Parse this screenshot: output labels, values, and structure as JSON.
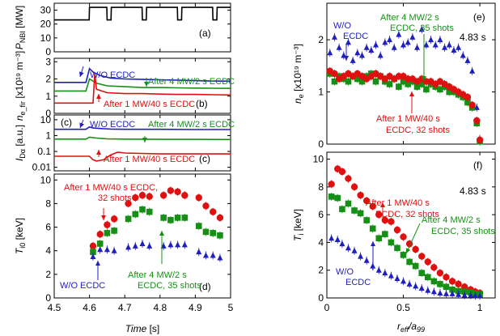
{
  "chart_data": [
    {
      "id": "a",
      "type": "line",
      "panel_label": "(a)",
      "ylabel": "P",
      "ylabel_sub": "NBI",
      "ylabel_unit": " [MW]",
      "xlim": [
        4.5,
        5.0
      ],
      "ylim": [
        0,
        35
      ],
      "yticks": [
        0,
        10,
        20,
        30
      ],
      "ytick_labels": [
        "0",
        "10",
        "20",
        "30"
      ],
      "series": [
        {
          "name": "NBI power",
          "color": "#000000",
          "x": [
            4.5,
            4.599,
            4.6,
            4.649,
            4.65,
            4.661,
            4.662,
            4.699,
            4.7,
            4.749,
            4.75,
            4.761,
            4.762,
            4.799,
            4.8,
            4.849,
            4.85,
            4.861,
            4.862,
            4.899,
            4.9,
            4.949,
            4.95,
            4.961,
            4.962,
            5.0
          ],
          "y": [
            23,
            23,
            32,
            32,
            23,
            23,
            32,
            32,
            32,
            32,
            23,
            23,
            32,
            32,
            32,
            32,
            23,
            23,
            32,
            32,
            32,
            32,
            23,
            23,
            32,
            32
          ]
        }
      ]
    },
    {
      "id": "b",
      "type": "line",
      "panel_label": "(b)",
      "ylabel": "n",
      "ylabel_sub": "e_fir",
      "ylabel_unit": " [x10¹⁹ m⁻³]",
      "xlim": [
        4.5,
        5.0
      ],
      "ylim": [
        0,
        3.2
      ],
      "yticks": [
        0,
        1,
        2,
        3
      ],
      "ytick_labels": [
        "0",
        "1",
        "2",
        "3"
      ],
      "series": [
        {
          "name": "W/O ECDC",
          "color": "#1f1fbf",
          "x": [
            4.5,
            4.55,
            4.59,
            4.6,
            4.61,
            4.63,
            4.66,
            4.7,
            4.75,
            4.8,
            4.85,
            4.9,
            4.95,
            5.0
          ],
          "y": [
            1.8,
            1.8,
            1.8,
            2.6,
            2.4,
            2.2,
            2.05,
            2.0,
            1.97,
            1.95,
            1.93,
            1.9,
            1.88,
            1.87
          ]
        },
        {
          "name": "After 4 MW/2 s ECDC",
          "color": "#159015",
          "x": [
            4.5,
            4.55,
            4.59,
            4.6,
            4.62,
            4.65,
            4.7,
            4.75,
            4.8,
            4.85,
            4.9,
            4.95,
            5.0
          ],
          "y": [
            1.3,
            1.3,
            1.3,
            2.0,
            1.75,
            1.6,
            1.55,
            1.5,
            1.5,
            1.48,
            1.47,
            1.46,
            1.45
          ]
        },
        {
          "name": "After 1 MW/40 s ECDC",
          "color": "#e01010",
          "x": [
            4.5,
            4.55,
            4.6,
            4.61,
            4.615,
            4.62,
            4.65,
            4.7,
            4.75,
            4.8,
            4.85,
            4.9,
            4.95,
            5.0
          ],
          "y": [
            0.6,
            0.6,
            0.6,
            0.6,
            2.3,
            1.4,
            1.2,
            1.15,
            1.15,
            1.12,
            1.1,
            1.1,
            1.08,
            1.07
          ]
        }
      ],
      "annotations": [
        {
          "text": "W/O ECDC",
          "series": 0
        },
        {
          "text": "After 4 MW/2 s ECDC",
          "series": 1
        },
        {
          "text": "After 1 MW/40 s ECDC",
          "series": 2
        }
      ]
    },
    {
      "id": "c",
      "type": "line",
      "panel_label": "(c)",
      "panel_label_left": "(c)",
      "ylabel": "I",
      "ylabel_sub": "Dα",
      "ylabel_unit": " [a.u.]",
      "yscale": "log",
      "xlim": [
        4.5,
        5.0
      ],
      "ylim": [
        0.006,
        20
      ],
      "yticks": [
        0.01,
        0.1,
        1,
        10
      ],
      "ytick_labels": [
        "0.01",
        "0.1",
        "1",
        "10"
      ],
      "series": [
        {
          "name": "W/O ECDC",
          "color": "#1f1fbf",
          "x": [
            4.5,
            4.55,
            4.59,
            4.6,
            4.61,
            4.63,
            4.66,
            4.7,
            4.8,
            4.9,
            5.0
          ],
          "y": [
            2.5,
            2.5,
            2.5,
            3.5,
            3.0,
            2.8,
            2.6,
            2.5,
            2.5,
            2.4,
            2.4
          ]
        },
        {
          "name": "After 4 MW/2 s ECDC",
          "color": "#159015",
          "x": [
            4.5,
            4.55,
            4.59,
            4.6,
            4.62,
            4.65,
            4.7,
            4.8,
            4.9,
            5.0
          ],
          "y": [
            0.6,
            0.6,
            0.6,
            0.8,
            0.7,
            0.62,
            0.6,
            0.58,
            0.58,
            0.57
          ]
        },
        {
          "name": "After 1 MW/40 s ECDC",
          "color": "#e01010",
          "x": [
            4.5,
            4.55,
            4.6,
            4.61,
            4.62,
            4.64,
            4.66,
            4.68,
            4.7,
            4.8,
            4.9,
            5.0
          ],
          "y": [
            0.05,
            0.05,
            0.05,
            0.03,
            0.025,
            0.03,
            0.06,
            0.09,
            0.08,
            0.07,
            0.07,
            0.07
          ]
        }
      ],
      "annotations": [
        {
          "text": "W/O ECDC",
          "series": 0
        },
        {
          "text": "After 4 MW/2 s ECDC",
          "series": 1
        },
        {
          "text": "After 1 MW/40 s ECDC",
          "series": 2
        }
      ]
    },
    {
      "id": "d",
      "type": "scatter",
      "panel_label": "(d)",
      "ylabel": "T",
      "ylabel_sub": "i0",
      "ylabel_unit": " [keV]",
      "xlabel": "Time [s]",
      "xlim": [
        4.5,
        5.0
      ],
      "ylim": [
        0,
        10.5
      ],
      "yticks": [
        0,
        2,
        4,
        6,
        8,
        10
      ],
      "ytick_labels": [
        "0",
        "2",
        "4",
        "6",
        "8",
        "10"
      ],
      "xticks": [
        4.5,
        4.6,
        4.7,
        4.8,
        4.9,
        5.0
      ],
      "xtick_labels": [
        "4.5",
        "4.6",
        "4.7",
        "4.8",
        "4.9",
        "5"
      ],
      "series": [
        {
          "name": "After 1 MW/40 s ECDC, 32 shots",
          "color": "#e01010",
          "marker": "circle",
          "x": [
            4.61,
            4.63,
            4.65,
            4.67,
            4.71,
            4.73,
            4.75,
            4.77,
            4.81,
            4.83,
            4.85,
            4.87,
            4.91,
            4.93,
            4.95,
            4.97
          ],
          "y": [
            4.4,
            5.4,
            6.2,
            6.7,
            8.0,
            8.5,
            8.7,
            8.6,
            8.7,
            9.1,
            9.0,
            8.7,
            8.5,
            7.8,
            7.3,
            6.8
          ]
        },
        {
          "name": "After 4 MW/2 s ECDC, 35 shots",
          "color": "#159015",
          "marker": "square",
          "x": [
            4.61,
            4.63,
            4.65,
            4.67,
            4.71,
            4.73,
            4.75,
            4.77,
            4.81,
            4.83,
            4.85,
            4.87,
            4.91,
            4.93,
            4.95,
            4.97
          ],
          "y": [
            3.9,
            4.6,
            5.5,
            5.7,
            6.7,
            7.1,
            7.5,
            7.3,
            6.8,
            6.6,
            6.8,
            6.8,
            6.1,
            5.6,
            5.5,
            5.3
          ]
        },
        {
          "name": "W/O ECDC",
          "color": "#1f1fbf",
          "marker": "triangle",
          "x": [
            4.61,
            4.63,
            4.65,
            4.67,
            4.71,
            4.73,
            4.75,
            4.77,
            4.81,
            4.83,
            4.85,
            4.87,
            4.91,
            4.93,
            4.95,
            4.97
          ],
          "y": [
            3.5,
            4.1,
            4.1,
            4.0,
            4.3,
            4.4,
            4.6,
            4.4,
            4.4,
            4.5,
            4.5,
            4.5,
            3.9,
            3.6,
            3.6,
            3.4
          ]
        }
      ],
      "annotations": [
        {
          "text": "After 1 MW/40 s ECDC,",
          "text2": "32 shots",
          "series": 0
        },
        {
          "text": "After 4 MW/2 s",
          "text2": "ECDC, 35 shots",
          "series": 1
        },
        {
          "text": "W/O ECDC",
          "series": 2
        }
      ]
    },
    {
      "id": "e",
      "type": "scatter",
      "panel_label": "(e)",
      "time_label": "4.83 s",
      "ylabel": "n",
      "ylabel_sub": "e",
      "ylabel_unit": " [x10¹⁹ m⁻³]",
      "xlim": [
        0,
        1.1
      ],
      "ylim": [
        0,
        2.7
      ],
      "yticks": [
        0,
        1,
        2
      ],
      "ytick_labels": [
        "0",
        "1",
        "2"
      ],
      "series": [
        {
          "name": "W/O ECDC",
          "color": "#1f1fbf",
          "marker": "triangle",
          "x": [
            0.02,
            0.05,
            0.08,
            0.11,
            0.14,
            0.17,
            0.2,
            0.23,
            0.26,
            0.29,
            0.32,
            0.35,
            0.38,
            0.41,
            0.44,
            0.47,
            0.5,
            0.53,
            0.56,
            0.59,
            0.62,
            0.65,
            0.68,
            0.71,
            0.74,
            0.77,
            0.8,
            0.83,
            0.86,
            0.89,
            0.92,
            0.95,
            0.98,
            1.0
          ],
          "y": [
            1.75,
            2.05,
            1.85,
            1.7,
            1.95,
            1.6,
            1.75,
            1.7,
            1.85,
            1.8,
            1.9,
            1.7,
            1.95,
            2.0,
            1.85,
            2.1,
            1.9,
            1.95,
            2.05,
            1.85,
            2.2,
            1.9,
            2.0,
            1.9,
            2.0,
            1.85,
            1.9,
            1.8,
            1.85,
            1.7,
            1.6,
            1.4,
            0.7,
            0.1
          ]
        },
        {
          "name": "After 4 MW/2 s ECDC, 35 shots",
          "color": "#159015",
          "marker": "square",
          "x": [
            0.02,
            0.05,
            0.08,
            0.11,
            0.14,
            0.17,
            0.2,
            0.23,
            0.26,
            0.29,
            0.32,
            0.35,
            0.38,
            0.41,
            0.44,
            0.47,
            0.5,
            0.53,
            0.56,
            0.59,
            0.62,
            0.65,
            0.68,
            0.71,
            0.74,
            0.77,
            0.8,
            0.83,
            0.86,
            0.89,
            0.92,
            0.95,
            0.98,
            1.0
          ],
          "y": [
            1.35,
            1.2,
            1.3,
            1.25,
            1.2,
            1.3,
            1.25,
            1.2,
            1.3,
            1.35,
            1.2,
            1.3,
            1.2,
            1.15,
            1.25,
            1.1,
            1.2,
            1.15,
            1.2,
            1.1,
            1.15,
            1.05,
            1.15,
            1.1,
            1.05,
            1.1,
            1.0,
            1.0,
            0.95,
            0.9,
            0.8,
            0.7,
            0.4,
            0.05
          ]
        },
        {
          "name": "After 1 MW/40 s ECDC, 32 shots",
          "color": "#e01010",
          "marker": "circle",
          "x": [
            0.02,
            0.05,
            0.08,
            0.11,
            0.14,
            0.17,
            0.2,
            0.23,
            0.26,
            0.29,
            0.32,
            0.35,
            0.38,
            0.41,
            0.44,
            0.47,
            0.5,
            0.53,
            0.56,
            0.59,
            0.62,
            0.65,
            0.68,
            0.71,
            0.74,
            0.77,
            0.8,
            0.83,
            0.86,
            0.89,
            0.92,
            0.95,
            0.98,
            1.0
          ],
          "y": [
            1.4,
            1.35,
            1.25,
            1.3,
            1.35,
            1.3,
            1.35,
            1.3,
            1.25,
            1.3,
            1.35,
            1.3,
            1.25,
            1.3,
            1.25,
            1.3,
            1.3,
            1.25,
            1.25,
            1.2,
            1.25,
            1.2,
            1.2,
            1.15,
            1.2,
            1.15,
            1.1,
            1.05,
            1.0,
            0.95,
            0.9,
            0.75,
            0.45,
            0.08
          ]
        }
      ],
      "annotations": [
        {
          "text": "W/O",
          "text2": "ECDC",
          "series": 0
        },
        {
          "text": "After 4 MW/2 s",
          "text2": "ECDC, 35 shots",
          "series": 1
        },
        {
          "text": "After 1 MW/40 s",
          "text2": "ECDC, 32 shots",
          "series": 2
        }
      ]
    },
    {
      "id": "f",
      "type": "scatter",
      "panel_label": "(f)",
      "time_label": "4.83 s",
      "ylabel": "T",
      "ylabel_sub": "i",
      "ylabel_unit": " [keV]",
      "xlabel": "r_eff/a_99",
      "xlim": [
        0,
        1.1
      ],
      "ylim": [
        0,
        10.5
      ],
      "yticks": [
        0,
        2,
        4,
        6,
        8,
        10
      ],
      "ytick_labels": [
        "0",
        "2",
        "4",
        "6",
        "8",
        "10"
      ],
      "xticks": [
        0,
        0.5,
        1.0
      ],
      "xtick_labels": [
        "0",
        "0.5",
        "1"
      ],
      "series": [
        {
          "name": "After 1 MW/40 s ECDC, 32 shots",
          "color": "#e01010",
          "marker": "circle",
          "x": [
            0.03,
            0.07,
            0.1,
            0.14,
            0.18,
            0.22,
            0.26,
            0.3,
            0.34,
            0.38,
            0.42,
            0.46,
            0.5,
            0.54,
            0.58,
            0.62,
            0.66,
            0.7,
            0.74,
            0.78,
            0.82,
            0.86,
            0.9,
            0.94,
            0.97,
            1.0
          ],
          "y": [
            8.2,
            9.3,
            9.1,
            8.6,
            8.0,
            7.4,
            7.0,
            6.6,
            6.0,
            5.6,
            5.5,
            4.9,
            4.4,
            3.9,
            3.5,
            3.0,
            2.6,
            2.2,
            1.8,
            1.5,
            1.2,
            1.0,
            0.8,
            0.6,
            0.45,
            0.35
          ]
        },
        {
          "name": "After 4 MW/2 s ECDC, 35 shots",
          "color": "#159015",
          "marker": "square",
          "x": [
            0.03,
            0.07,
            0.1,
            0.14,
            0.18,
            0.22,
            0.26,
            0.3,
            0.34,
            0.38,
            0.42,
            0.46,
            0.5,
            0.54,
            0.58,
            0.62,
            0.66,
            0.7,
            0.74,
            0.78,
            0.82,
            0.86,
            0.9,
            0.94,
            0.97,
            1.0
          ],
          "y": [
            7.3,
            7.2,
            6.4,
            6.8,
            6.3,
            6.1,
            5.6,
            5.0,
            4.3,
            4.6,
            4.0,
            3.6,
            3.1,
            2.6,
            2.3,
            1.8,
            1.5,
            1.2,
            1.0,
            0.8,
            0.6,
            0.5,
            0.45,
            0.4,
            0.3,
            0.25
          ]
        },
        {
          "name": "W/O ECDC",
          "color": "#1f1fbf",
          "marker": "triangle",
          "x": [
            0.03,
            0.07,
            0.1,
            0.14,
            0.18,
            0.22,
            0.26,
            0.3,
            0.34,
            0.38,
            0.42,
            0.46,
            0.5,
            0.54,
            0.58,
            0.62,
            0.66,
            0.7,
            0.74,
            0.78,
            0.82,
            0.86,
            0.9,
            0.94,
            0.97,
            1.0
          ],
          "y": [
            4.3,
            4.2,
            3.9,
            3.6,
            3.4,
            3.0,
            2.7,
            2.3,
            2.0,
            1.8,
            1.6,
            1.4,
            1.2,
            1.0,
            0.85,
            0.7,
            0.55,
            0.45,
            0.35,
            0.3,
            0.3,
            0.25,
            0.2,
            0.2,
            0.15,
            0.15
          ]
        }
      ],
      "annotations": [
        {
          "text": "After 1 MW/40 s",
          "text2": "ECDC, 32 shots",
          "series": 0
        },
        {
          "text": "After 4 MW/2 s",
          "text2": "ECDC, 35 shots",
          "series": 1
        },
        {
          "text": "W/O",
          "text2": "ECDC",
          "series": 2
        }
      ]
    }
  ]
}
